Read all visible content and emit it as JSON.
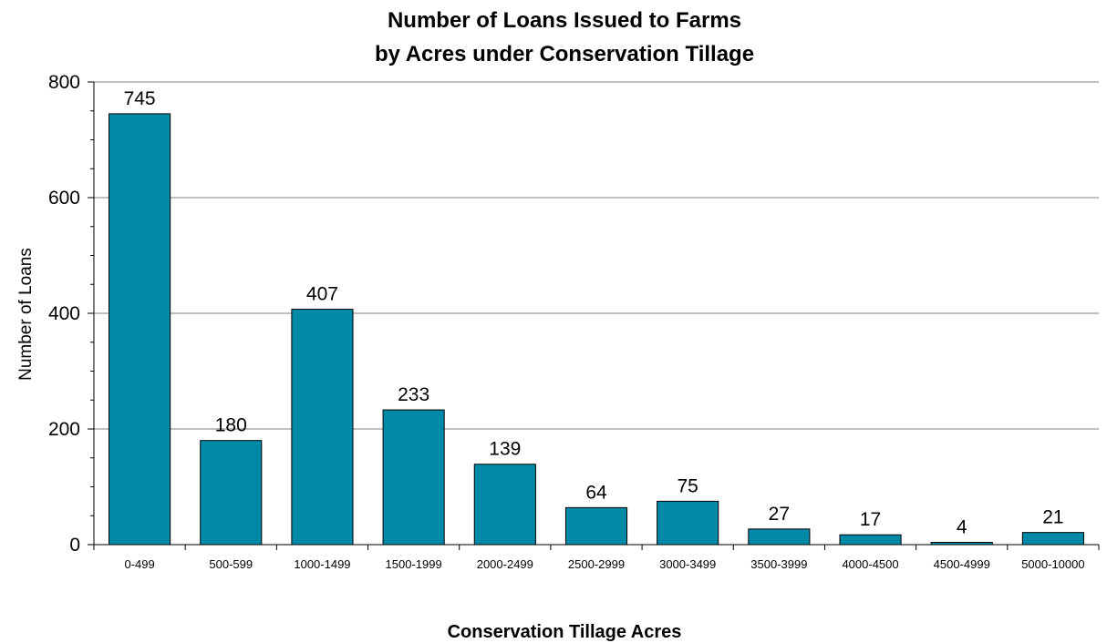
{
  "chart_data": {
    "type": "bar",
    "title_lines": [
      "Number of Loans Issued to Farms",
      "by Acres under Conservation  Tillage"
    ],
    "xlabel": "Conservation Tillage Acres",
    "ylabel": "Number of  Loans",
    "categories": [
      "0-499",
      "500-599",
      "1000-1499",
      "1500-1999",
      "2000-2499",
      "2500-2999",
      "3000-3499",
      "3500-3999",
      "4000-4500",
      "4500-4999",
      "5000-10000"
    ],
    "values": [
      745,
      180,
      407,
      233,
      139,
      64,
      75,
      27,
      17,
      4,
      21
    ],
    "data_labels": [
      "745",
      "180",
      "407",
      "233",
      "139",
      "64",
      "75",
      "27",
      "17",
      "4",
      "21"
    ],
    "ylim": [
      0,
      800
    ],
    "yticks": [
      0,
      200,
      400,
      600,
      800
    ],
    "ytick_labels": [
      "0",
      "200",
      "400",
      "600",
      "800"
    ],
    "grid": true,
    "bar_color": "#008AA8",
    "bar_edge_color": "#000000"
  }
}
